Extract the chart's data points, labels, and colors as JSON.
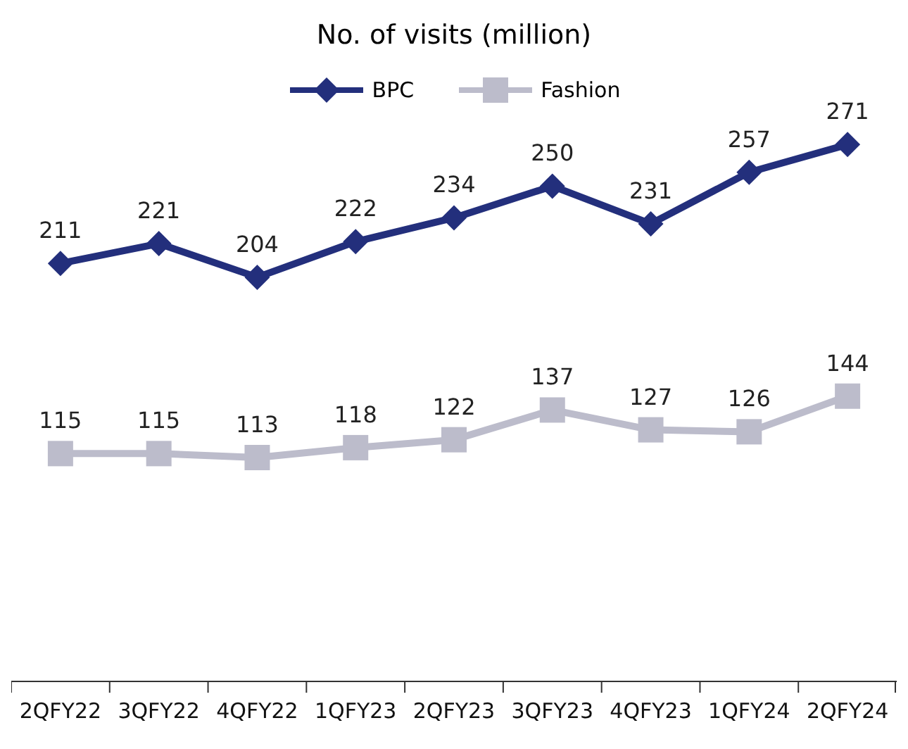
{
  "chart_data": {
    "type": "line",
    "title": "No. of visits (million)",
    "categories": [
      "2QFY22",
      "3QFY22",
      "4QFY22",
      "1QFY23",
      "2QFY23",
      "3QFY23",
      "4QFY23",
      "1QFY24",
      "2QFY24"
    ],
    "series": [
      {
        "name": "BPC",
        "color": "#232f7c",
        "marker": "diamond",
        "values": [
          211,
          221,
          204,
          222,
          234,
          250,
          231,
          257,
          271
        ]
      },
      {
        "name": "Fashion",
        "color": "#bcbccb",
        "marker": "square",
        "values": [
          115,
          115,
          113,
          118,
          122,
          137,
          127,
          126,
          144
        ]
      }
    ],
    "data_labels": true,
    "legend": "top",
    "tick_labels": "x"
  }
}
